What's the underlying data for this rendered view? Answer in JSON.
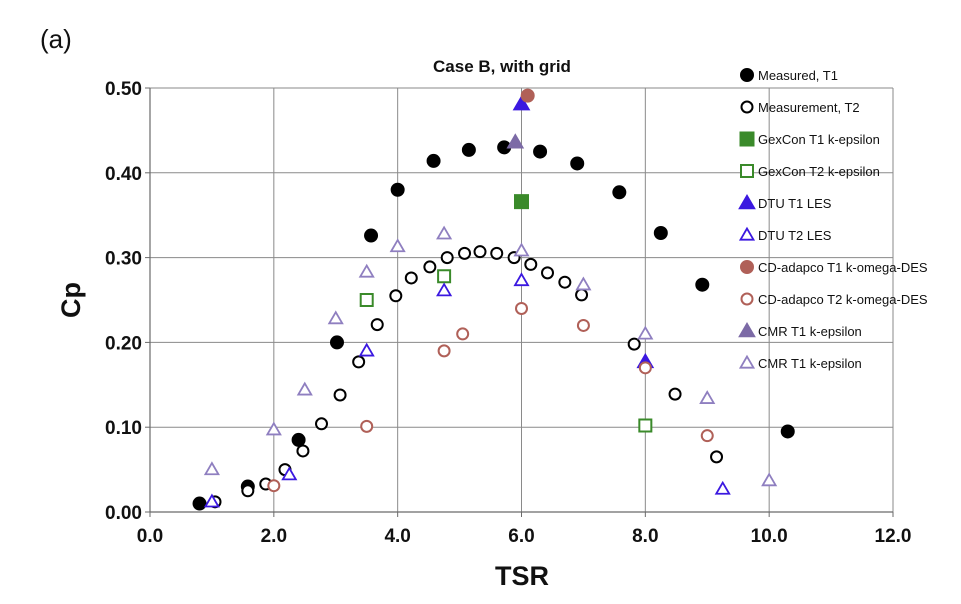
{
  "panel_label": "(a)",
  "chart_data": {
    "type": "scatter",
    "title": "Case B, with grid",
    "xlabel": "TSR",
    "ylabel": "Cp",
    "xlim": [
      0,
      12
    ],
    "ylim": [
      0,
      0.5
    ],
    "x_ticks": [
      "0.0",
      "2.0",
      "4.0",
      "6.0",
      "8.0",
      "10.0",
      "12.0"
    ],
    "y_ticks": [
      "0.00",
      "0.10",
      "0.20",
      "0.30",
      "0.40",
      "0.50"
    ],
    "grid": true,
    "legend_position": "right",
    "series": [
      {
        "name": "Measured, T1",
        "marker": "circle",
        "filled": true,
        "color": "#000000",
        "x": [
          0.8,
          1.58,
          2.4,
          3.02,
          3.57,
          4.0,
          4.58,
          5.15,
          5.72,
          6.3,
          6.9,
          7.58,
          8.25,
          8.92,
          10.3
        ],
        "y": [
          0.01,
          0.03,
          0.085,
          0.2,
          0.326,
          0.38,
          0.414,
          0.427,
          0.43,
          0.425,
          0.411,
          0.377,
          0.329,
          0.268,
          0.095
        ]
      },
      {
        "name": "Measurement, T2",
        "marker": "circle",
        "filled": false,
        "color": "#000000",
        "x": [
          1.05,
          1.58,
          1.87,
          2.18,
          2.47,
          2.77,
          3.07,
          3.37,
          3.67,
          3.97,
          4.22,
          4.52,
          4.8,
          5.08,
          5.33,
          5.6,
          5.88,
          6.15,
          6.42,
          6.7,
          6.97,
          7.82,
          8.48,
          9.15
        ],
        "y": [
          0.012,
          0.025,
          0.033,
          0.05,
          0.072,
          0.104,
          0.138,
          0.177,
          0.221,
          0.255,
          0.276,
          0.289,
          0.3,
          0.305,
          0.307,
          0.305,
          0.3,
          0.292,
          0.282,
          0.271,
          0.256,
          0.198,
          0.139,
          0.065
        ]
      },
      {
        "name": "GexCon T1  k-epsilon",
        "marker": "square",
        "filled": true,
        "color": "#3a8a2a",
        "x": [
          6.0
        ],
        "y": [
          0.366
        ]
      },
      {
        "name": "GexCon T2 k-epsilon",
        "marker": "square",
        "filled": false,
        "color": "#3a8a2a",
        "x": [
          3.5,
          4.75,
          8.0
        ],
        "y": [
          0.25,
          0.278,
          0.102
        ]
      },
      {
        "name": "DTU T1 LES",
        "marker": "triangle",
        "filled": true,
        "color": "#3b18e0",
        "x": [
          6.0,
          8.0
        ],
        "y": [
          0.481,
          0.177
        ]
      },
      {
        "name": "DTU T2 LES",
        "marker": "triangle",
        "filled": false,
        "color": "#3b18e0",
        "x": [
          1.0,
          2.25,
          3.5,
          4.75,
          6.0,
          9.25
        ],
        "y": [
          0.012,
          0.044,
          0.19,
          0.261,
          0.273,
          0.027
        ]
      },
      {
        "name": "CD-adapco T1 k-omega-DES",
        "marker": "circle",
        "filled": true,
        "color": "#b06058",
        "x": [
          6.1
        ],
        "y": [
          0.491
        ]
      },
      {
        "name": "CD-adapco T2 k-omega-DES",
        "marker": "circle",
        "filled": false,
        "color": "#b06058",
        "x": [
          2.0,
          3.5,
          4.75,
          5.05,
          6.0,
          7.0,
          8.0,
          9.0
        ],
        "y": [
          0.031,
          0.101,
          0.19,
          0.21,
          0.24,
          0.22,
          0.17,
          0.09
        ]
      },
      {
        "name": "CMR T1 k-epsilon",
        "marker": "triangle",
        "filled": true,
        "color": "#7c6aa6",
        "x": [
          5.9
        ],
        "y": [
          0.436
        ]
      },
      {
        "name": "CMR T1 k-epsilon",
        "marker": "triangle",
        "filled": false,
        "color": "#8f7fc0",
        "x": [
          1.0,
          2.0,
          2.5,
          3.0,
          3.5,
          4.0,
          4.75,
          6.0,
          7.0,
          8.0,
          9.0,
          10.0
        ],
        "y": [
          0.05,
          0.097,
          0.144,
          0.228,
          0.283,
          0.313,
          0.328,
          0.308,
          0.268,
          0.21,
          0.134,
          0.037
        ]
      }
    ]
  }
}
